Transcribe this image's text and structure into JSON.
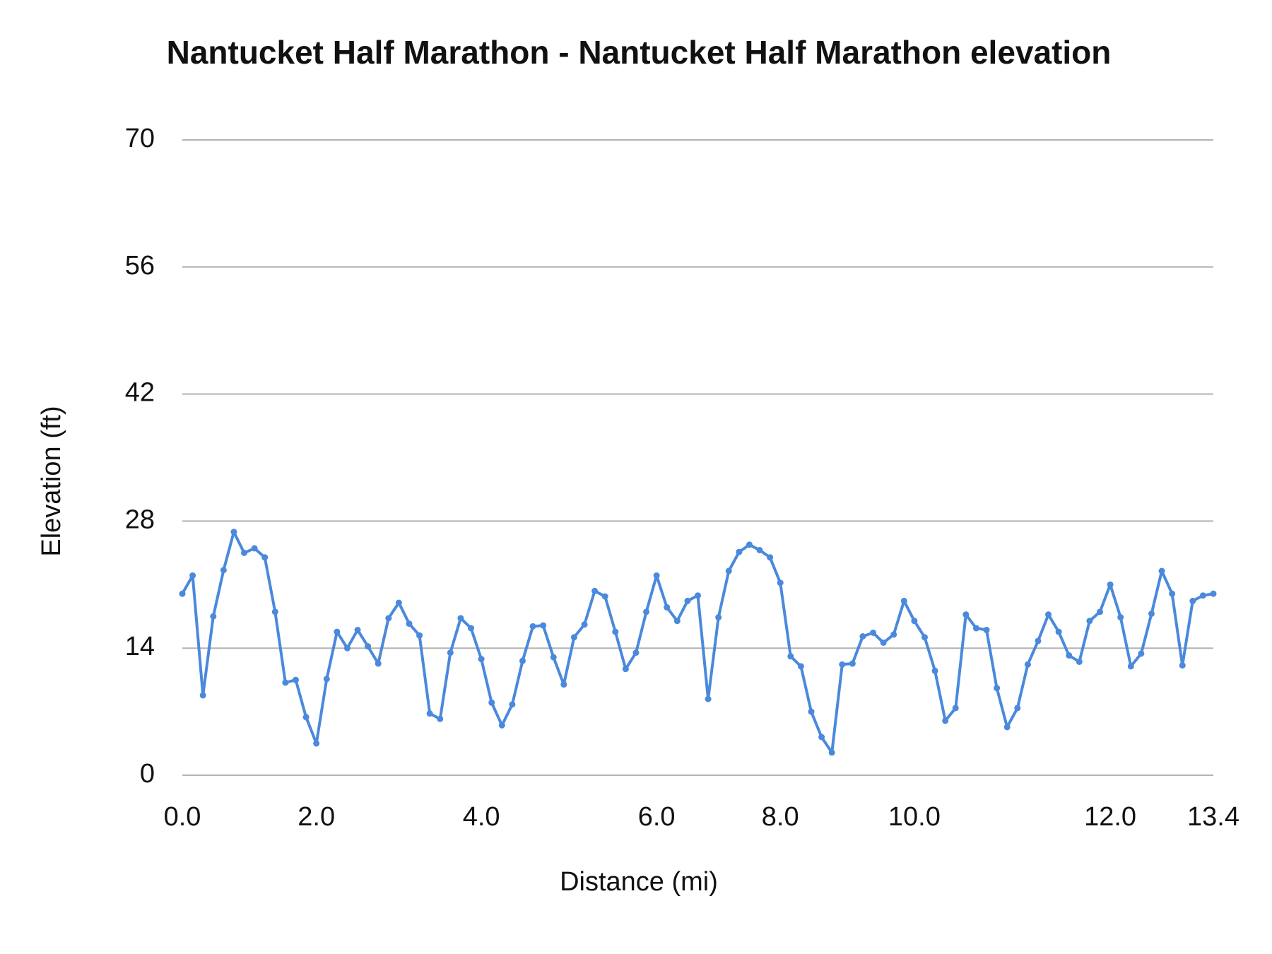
{
  "chart_data": {
    "type": "line",
    "title": "Nantucket Half Marathon - Nantucket Half Marathon elevation",
    "x_label": "Distance (mi)",
    "y_label": "Elevation (ft)",
    "categories": [
      "0.0",
      null,
      null,
      null,
      null,
      null,
      null,
      null,
      null,
      null,
      null,
      null,
      null,
      "2.0",
      null,
      null,
      null,
      null,
      null,
      null,
      null,
      null,
      null,
      null,
      null,
      null,
      null,
      null,
      null,
      "4.0",
      null,
      null,
      null,
      null,
      null,
      null,
      null,
      null,
      null,
      null,
      null,
      null,
      null,
      null,
      null,
      null,
      "6.0",
      null,
      null,
      null,
      null,
      null,
      null,
      null,
      null,
      null,
      null,
      null,
      "8.0",
      null,
      null,
      null,
      null,
      null,
      null,
      null,
      null,
      null,
      null,
      null,
      null,
      "10.0",
      null,
      null,
      null,
      null,
      null,
      null,
      null,
      null,
      null,
      null,
      null,
      null,
      null,
      null,
      null,
      null,
      null,
      null,
      "12.0",
      null,
      null,
      null,
      null,
      null,
      null,
      null,
      null,
      null,
      "13.4"
    ],
    "values": [
      20,
      22,
      8.8,
      17.5,
      22.6,
      26.8,
      24.5,
      25,
      24,
      18,
      10.2,
      10.5,
      6.4,
      3.5,
      10.6,
      15.8,
      14,
      16,
      14.2,
      12.3,
      17.3,
      19,
      16.7,
      15.4,
      6.8,
      6.2,
      13.5,
      17.3,
      16.2,
      12.8,
      8,
      5.5,
      7.8,
      12.6,
      16.4,
      16.5,
      13,
      10,
      15.2,
      16.6,
      20.3,
      19.7,
      15.8,
      11.7,
      13.5,
      18,
      22,
      18.5,
      17,
      19.2,
      19.8,
      8.4,
      17.4,
      22.5,
      24.6,
      25.4,
      24.8,
      24,
      21.2,
      13.1,
      12,
      7,
      4.2,
      2.5,
      12.2,
      12.3,
      15.3,
      15.7,
      14.6,
      15.5,
      19.2,
      17,
      15.2,
      11.5,
      6,
      7.4,
      17.7,
      16.2,
      16,
      9.6,
      5.3,
      7.4,
      12.2,
      14.8,
      17.7,
      15.8,
      13.2,
      12.5,
      17,
      18,
      21,
      17.4,
      12,
      13.4,
      17.8,
      22.5,
      20,
      12.1,
      19.2,
      19.8,
      20
    ],
    "color": "#4a89dc",
    "ylim": [
      0,
      70
    ],
    "yticks": [
      0,
      14,
      28,
      42,
      56,
      70
    ],
    "grid": true
  }
}
